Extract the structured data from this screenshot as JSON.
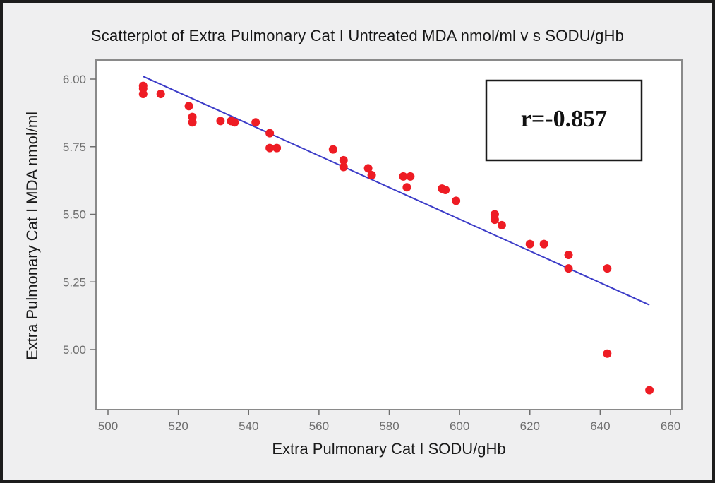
{
  "chart_data": {
    "type": "scatter",
    "title": "Scatterplot of Extra Pulmonary Cat I Untreated MDA nmol/ml v s SODU/gHb",
    "xlabel": "Extra Pulmonary Cat I SODU/gHb",
    "ylabel": "Extra Pulmonary Cat I MDA nmol/ml",
    "xlim": [
      497,
      662
    ],
    "ylim": [
      4.8,
      6.06
    ],
    "x_ticks": [
      500,
      520,
      540,
      560,
      580,
      600,
      620,
      640,
      660
    ],
    "y_ticks": [
      5.0,
      5.25,
      5.5,
      5.75,
      6.0
    ],
    "x_tick_labels": [
      "500",
      "520",
      "540",
      "560",
      "580",
      "600",
      "620",
      "640",
      "660"
    ],
    "y_tick_labels": [
      "5.00",
      "5.25",
      "5.50",
      "5.75",
      "6.00"
    ],
    "annotation": "r=-0.857",
    "fit_line": {
      "x": [
        510,
        654
      ],
      "y": [
        6.01,
        5.165
      ]
    },
    "points": [
      {
        "x": 510,
        "y": 5.975
      },
      {
        "x": 510,
        "y": 5.965
      },
      {
        "x": 510,
        "y": 5.945
      },
      {
        "x": 515,
        "y": 5.945
      },
      {
        "x": 523,
        "y": 5.9
      },
      {
        "x": 524,
        "y": 5.86
      },
      {
        "x": 524,
        "y": 5.84
      },
      {
        "x": 532,
        "y": 5.845
      },
      {
        "x": 535,
        "y": 5.845
      },
      {
        "x": 536,
        "y": 5.84
      },
      {
        "x": 542,
        "y": 5.84
      },
      {
        "x": 546,
        "y": 5.8
      },
      {
        "x": 546,
        "y": 5.745
      },
      {
        "x": 548,
        "y": 5.745
      },
      {
        "x": 564,
        "y": 5.74
      },
      {
        "x": 567,
        "y": 5.7
      },
      {
        "x": 567,
        "y": 5.675
      },
      {
        "x": 574,
        "y": 5.67
      },
      {
        "x": 575,
        "y": 5.645
      },
      {
        "x": 584,
        "y": 5.64
      },
      {
        "x": 586,
        "y": 5.64
      },
      {
        "x": 585,
        "y": 5.6
      },
      {
        "x": 595,
        "y": 5.595
      },
      {
        "x": 596,
        "y": 5.59
      },
      {
        "x": 599,
        "y": 5.55
      },
      {
        "x": 610,
        "y": 5.5
      },
      {
        "x": 610,
        "y": 5.48
      },
      {
        "x": 612,
        "y": 5.46
      },
      {
        "x": 620,
        "y": 5.39
      },
      {
        "x": 624,
        "y": 5.39
      },
      {
        "x": 631,
        "y": 5.35
      },
      {
        "x": 631,
        "y": 5.3
      },
      {
        "x": 642,
        "y": 5.3
      },
      {
        "x": 642,
        "y": 4.985
      },
      {
        "x": 654,
        "y": 4.85
      }
    ],
    "grid": false,
    "colors": {
      "points": "#ee1c24",
      "fit_line": "#3c3cc8",
      "axes": "#6e6e6e"
    }
  }
}
